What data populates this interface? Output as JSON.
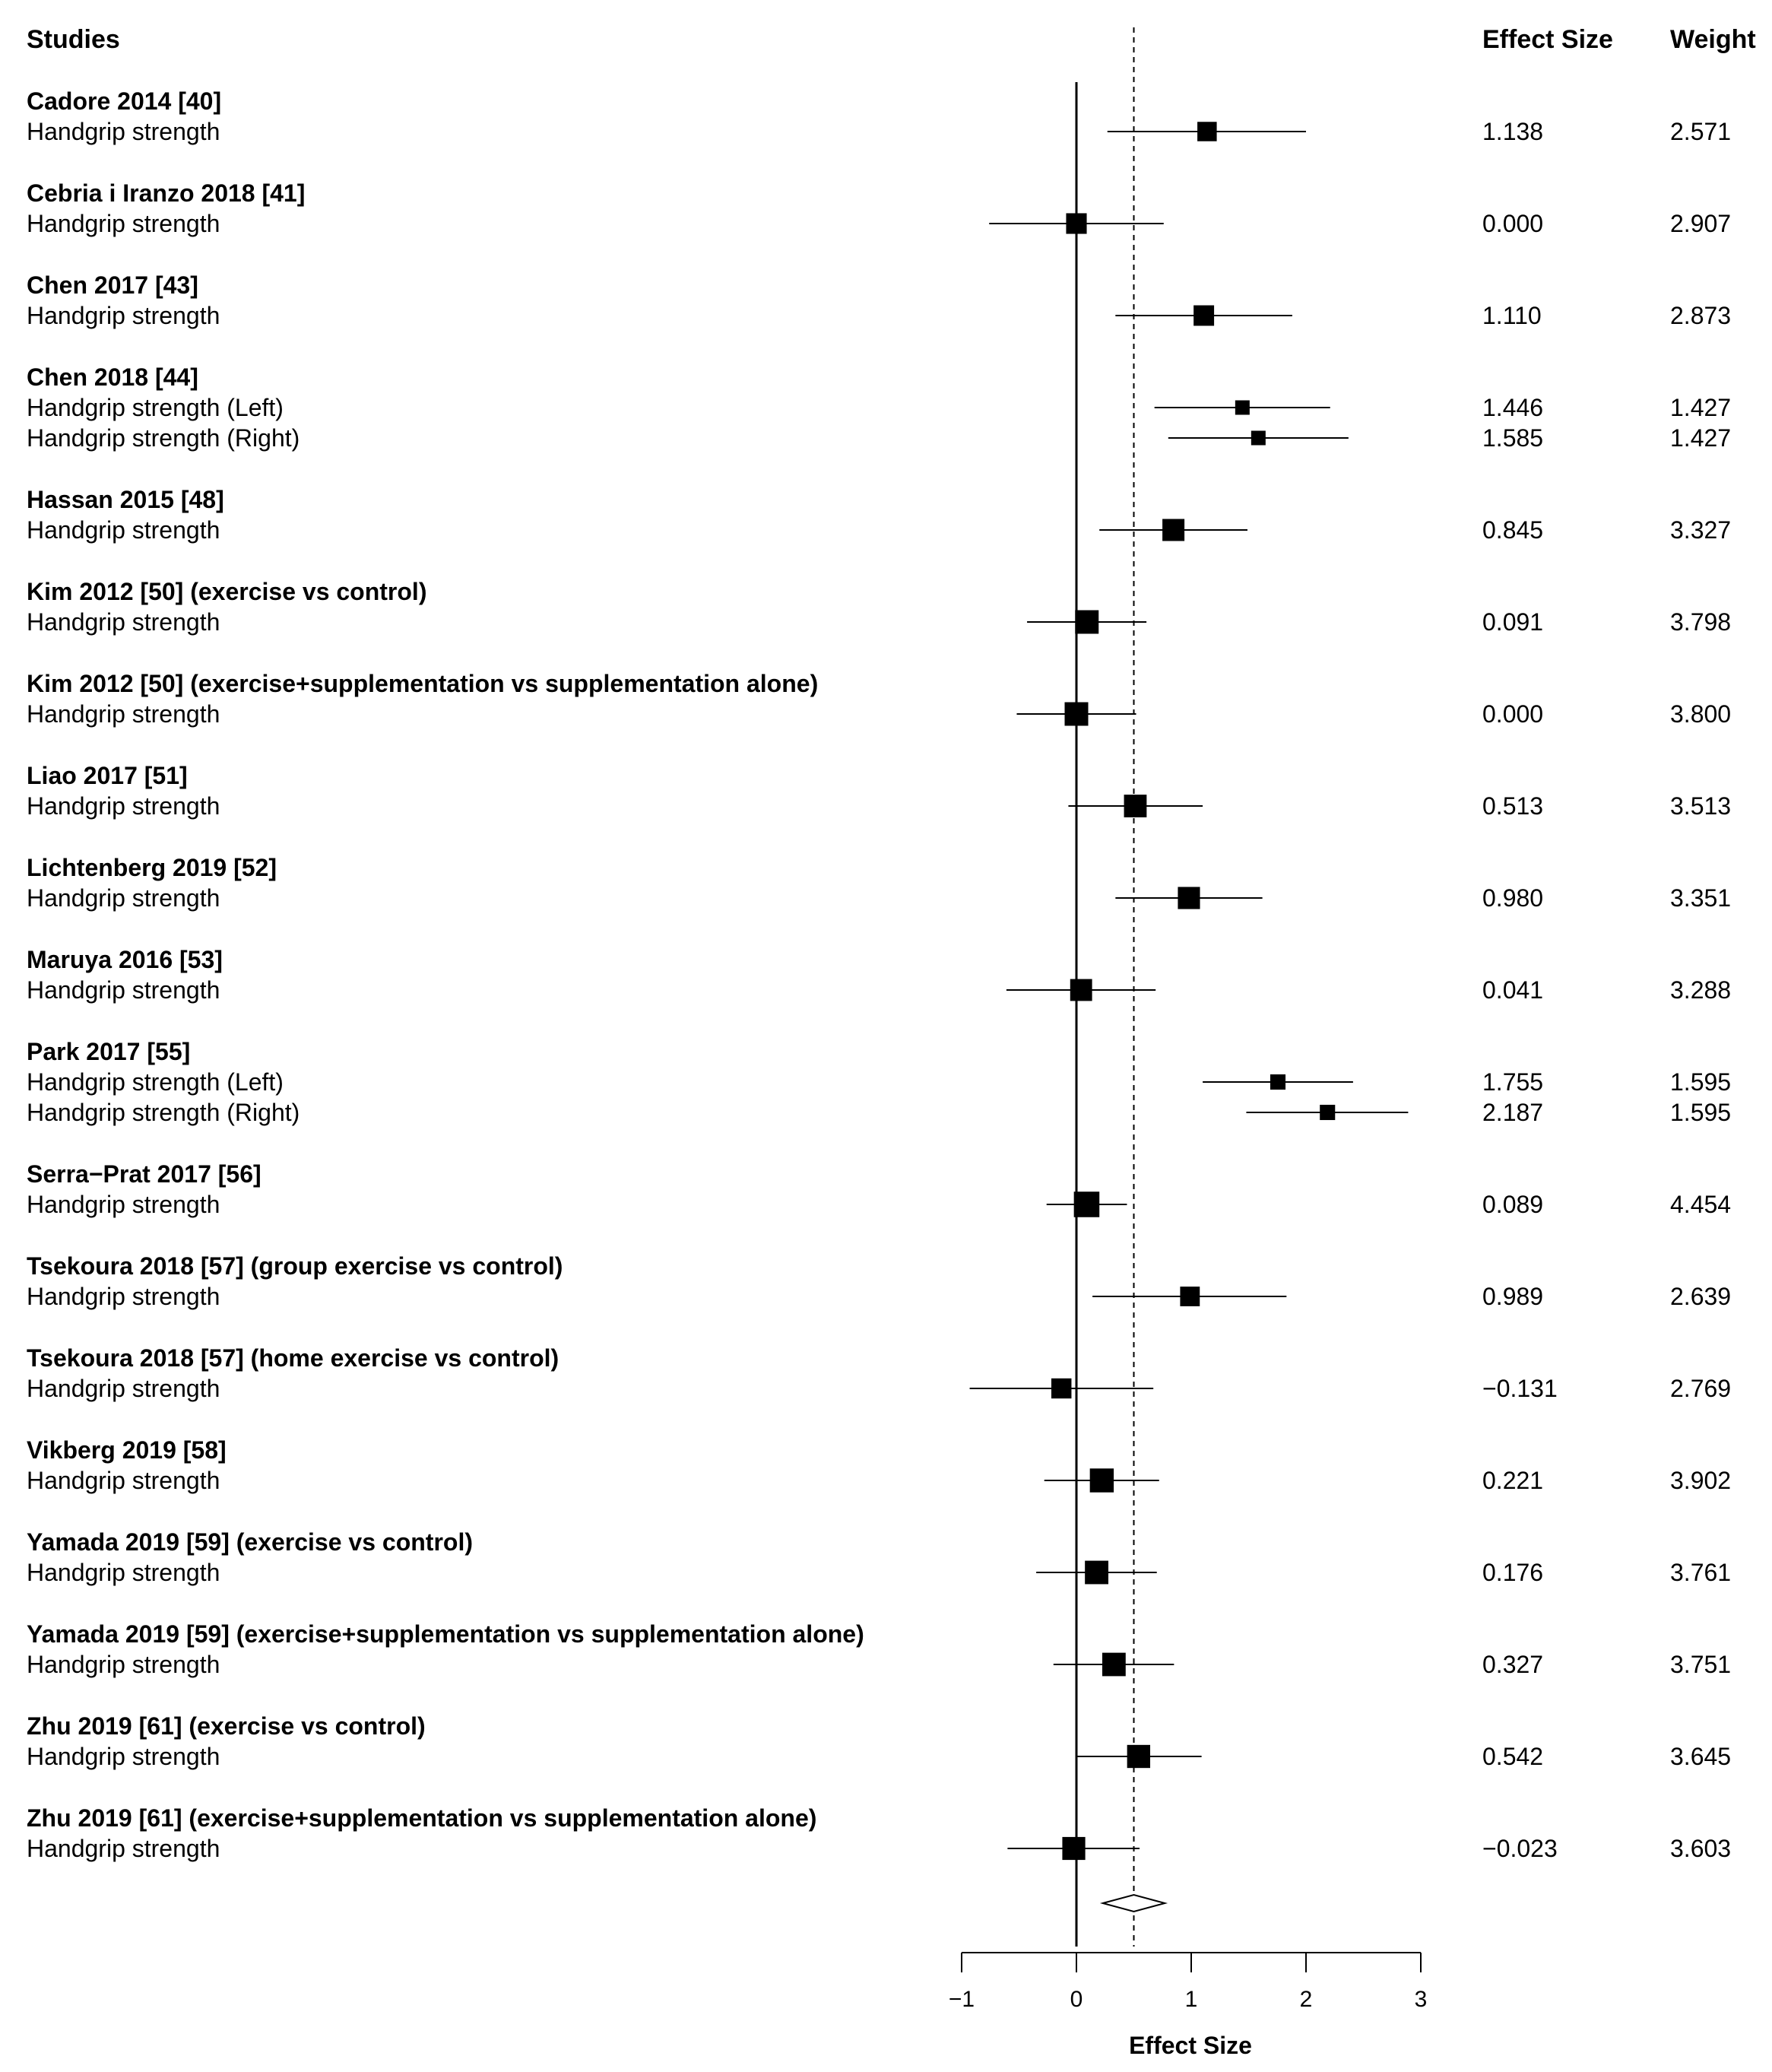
{
  "headers": {
    "studies": "Studies",
    "effect_size": "Effect Size",
    "weight": "Weight"
  },
  "chart_data": {
    "type": "forest",
    "xlabel": "Effect Size",
    "xlim": [
      -1,
      3
    ],
    "xticks": [
      -1,
      0,
      1,
      2,
      3
    ],
    "tick_labels": [
      "−1",
      "0",
      "1",
      "2",
      "3"
    ],
    "null_line": 0,
    "summary_estimate": 0.5,
    "summary_ci": [
      0.23,
      0.77
    ],
    "studies": [
      {
        "name": "Cadore 2014 [40]",
        "outcomes": [
          {
            "label": "Handgrip strength",
            "es": 1.138,
            "es_text": "1.138",
            "weight": 2.571,
            "weight_text": "2.571",
            "lo": 0.27,
            "hi": 2.0
          }
        ]
      },
      {
        "name": "Cebria i Iranzo 2018 [41]",
        "outcomes": [
          {
            "label": "Handgrip strength",
            "es": 0.0,
            "es_text": "0.000",
            "weight": 2.907,
            "weight_text": "2.907",
            "lo": -0.76,
            "hi": 0.76
          }
        ]
      },
      {
        "name": "Chen 2017 [43]",
        "outcomes": [
          {
            "label": "Handgrip strength",
            "es": 1.11,
            "es_text": "1.110",
            "weight": 2.873,
            "weight_text": "2.873",
            "lo": 0.34,
            "hi": 1.88
          }
        ]
      },
      {
        "name": "Chen 2018 [44]",
        "outcomes": [
          {
            "label": "Handgrip strength (Left)",
            "es": 1.446,
            "es_text": "1.446",
            "weight": 1.427,
            "weight_text": "1.427",
            "lo": 0.68,
            "hi": 2.21
          },
          {
            "label": "Handgrip strength (Right)",
            "es": 1.585,
            "es_text": "1.585",
            "weight": 1.427,
            "weight_text": "1.427",
            "lo": 0.8,
            "hi": 2.37
          }
        ]
      },
      {
        "name": "Hassan 2015 [48]",
        "outcomes": [
          {
            "label": "Handgrip strength",
            "es": 0.845,
            "es_text": "0.845",
            "weight": 3.327,
            "weight_text": "3.327",
            "lo": 0.2,
            "hi": 1.49
          }
        ]
      },
      {
        "name": "Kim 2012 [50] (exercise vs control)",
        "outcomes": [
          {
            "label": "Handgrip strength",
            "es": 0.091,
            "es_text": "0.091",
            "weight": 3.798,
            "weight_text": "3.798",
            "lo": -0.43,
            "hi": 0.61
          }
        ]
      },
      {
        "name": "Kim 2012 [50] (exercise+supplementation vs supplementation alone)",
        "outcomes": [
          {
            "label": "Handgrip strength",
            "es": 0.0,
            "es_text": "0.000",
            "weight": 3.8,
            "weight_text": "3.800",
            "lo": -0.52,
            "hi": 0.52
          }
        ]
      },
      {
        "name": "Liao 2017 [51]",
        "outcomes": [
          {
            "label": "Handgrip strength",
            "es": 0.513,
            "es_text": "0.513",
            "weight": 3.513,
            "weight_text": "3.513",
            "lo": -0.07,
            "hi": 1.1
          }
        ]
      },
      {
        "name": "Lichtenberg 2019 [52]",
        "outcomes": [
          {
            "label": "Handgrip strength",
            "es": 0.98,
            "es_text": "0.980",
            "weight": 3.351,
            "weight_text": "3.351",
            "lo": 0.34,
            "hi": 1.62
          }
        ]
      },
      {
        "name": "Maruya 2016 [53]",
        "outcomes": [
          {
            "label": "Handgrip strength",
            "es": 0.041,
            "es_text": "0.041",
            "weight": 3.288,
            "weight_text": "3.288",
            "lo": -0.61,
            "hi": 0.69
          }
        ]
      },
      {
        "name": "Park 2017 [55]",
        "outcomes": [
          {
            "label": "Handgrip strength (Left)",
            "es": 1.755,
            "es_text": "1.755",
            "weight": 1.595,
            "weight_text": "1.595",
            "lo": 1.1,
            "hi": 2.41
          },
          {
            "label": "Handgrip strength (Right)",
            "es": 2.187,
            "es_text": "2.187",
            "weight": 1.595,
            "weight_text": "1.595",
            "lo": 1.48,
            "hi": 2.89
          }
        ]
      },
      {
        "name": "Serra−Prat 2017 [56]",
        "outcomes": [
          {
            "label": "Handgrip strength",
            "es": 0.089,
            "es_text": "0.089",
            "weight": 4.454,
            "weight_text": "4.454",
            "lo": -0.26,
            "hi": 0.44
          }
        ]
      },
      {
        "name": "Tsekoura 2018 [57] (group exercise vs control)",
        "outcomes": [
          {
            "label": "Handgrip strength",
            "es": 0.989,
            "es_text": "0.989",
            "weight": 2.639,
            "weight_text": "2.639",
            "lo": 0.14,
            "hi": 1.83
          }
        ]
      },
      {
        "name": "Tsekoura 2018 [57] (home exercise vs control)",
        "outcomes": [
          {
            "label": "Handgrip strength",
            "es": -0.131,
            "es_text": "−0.131",
            "weight": 2.769,
            "weight_text": "2.769",
            "lo": -0.93,
            "hi": 0.67
          }
        ]
      },
      {
        "name": "Vikberg 2019 [58]",
        "outcomes": [
          {
            "label": "Handgrip strength",
            "es": 0.221,
            "es_text": "0.221",
            "weight": 3.902,
            "weight_text": "3.902",
            "lo": -0.28,
            "hi": 0.72
          }
        ]
      },
      {
        "name": "Yamada 2019 [59] (exercise vs control)",
        "outcomes": [
          {
            "label": "Handgrip strength",
            "es": 0.176,
            "es_text": "0.176",
            "weight": 3.761,
            "weight_text": "3.761",
            "lo": -0.35,
            "hi": 0.7
          }
        ]
      },
      {
        "name": "Yamada 2019 [59] (exercise+supplementation vs supplementation alone)",
        "outcomes": [
          {
            "label": "Handgrip strength",
            "es": 0.327,
            "es_text": "0.327",
            "weight": 3.751,
            "weight_text": "3.751",
            "lo": -0.2,
            "hi": 0.85
          }
        ]
      },
      {
        "name": "Zhu 2019 [61] (exercise vs control)",
        "outcomes": [
          {
            "label": "Handgrip strength",
            "es": 0.542,
            "es_text": "0.542",
            "weight": 3.645,
            "weight_text": "3.645",
            "lo": 0.0,
            "hi": 1.09
          }
        ]
      },
      {
        "name": "Zhu 2019 [61] (exercise+supplementation vs supplementation alone)",
        "outcomes": [
          {
            "label": "Handgrip strength",
            "es": -0.023,
            "es_text": "−0.023",
            "weight": 3.603,
            "weight_text": "3.603",
            "lo": -0.6,
            "hi": 0.55
          }
        ]
      }
    ]
  }
}
